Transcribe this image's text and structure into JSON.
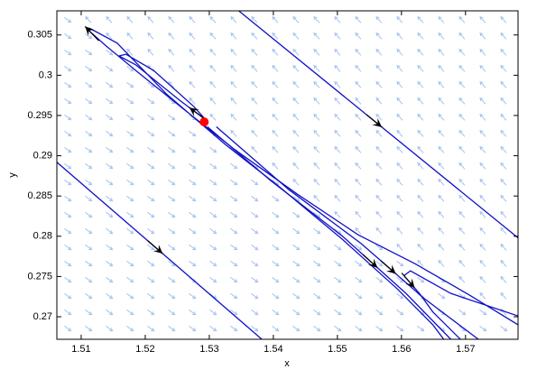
{
  "chart_data": {
    "type": "line",
    "x_label": "x",
    "y_label": "y",
    "xlim": [
      1.5062,
      1.5782
    ],
    "ylim": [
      0.2672,
      0.308
    ],
    "xticks": [
      1.51,
      1.52,
      1.53,
      1.54,
      1.55,
      1.56,
      1.57
    ],
    "yticks": [
      0.27,
      0.275,
      0.28,
      0.285,
      0.29,
      0.295,
      0.3,
      0.305
    ],
    "field_color": "#a8c4f0",
    "series": [
      {
        "color": "#1010c8",
        "x": [
          1.5782,
          1.5706,
          1.5621,
          1.5532,
          1.5438,
          1.5339,
          1.5255,
          1.5185,
          1.5138,
          1.5114,
          1.5108,
          1.5114,
          1.5156,
          1.5234,
          1.5325,
          1.541,
          1.5508,
          1.5593,
          1.5649,
          1.5666
        ],
        "values": [
          0.269,
          0.2727,
          0.2766,
          0.2802,
          0.2852,
          0.2908,
          0.2961,
          0.3006,
          0.3037,
          0.3054,
          0.3059,
          0.3058,
          0.304,
          0.2976,
          0.2914,
          0.2861,
          0.2796,
          0.2735,
          0.269,
          0.2672
        ]
      },
      {
        "color": "#1010c8",
        "x": [
          1.5346,
          1.5782
        ],
        "values": [
          0.308,
          0.2798
        ]
      },
      {
        "color": "#1010c8",
        "x": [
          1.5062,
          1.5382
        ],
        "values": [
          0.2892,
          0.2672
        ]
      },
      {
        "color": "#1010c8",
        "x": [
          1.517,
          1.5213,
          1.5276,
          1.5294,
          1.5255,
          1.5185,
          1.5159,
          1.517
        ],
        "values": [
          0.3026,
          0.3006,
          0.2961,
          0.2945,
          0.2968,
          0.3013,
          0.3024,
          0.3026
        ]
      },
      {
        "color": "#1010c8",
        "x": [
          1.5297,
          1.5396,
          1.5508,
          1.5607,
          1.5677
        ],
        "values": [
          0.2936,
          0.2869,
          0.28,
          0.2729,
          0.2672
        ]
      },
      {
        "color": "#1010c8",
        "x": [
          1.5311,
          1.5424,
          1.5537,
          1.5635,
          1.572
        ],
        "values": [
          0.2936,
          0.2858,
          0.2791,
          0.2723,
          0.2672
        ]
      },
      {
        "color": "#1010c8",
        "x": [
          1.5782,
          1.5677,
          1.5614,
          1.5604,
          1.5628,
          1.5649,
          1.5692
        ],
        "values": [
          0.2701,
          0.2729,
          0.2757,
          0.2751,
          0.2729,
          0.2706,
          0.2672
        ]
      }
    ],
    "point": {
      "x": 1.5292,
      "y": 0.2942,
      "color": "#ff0000"
    }
  }
}
